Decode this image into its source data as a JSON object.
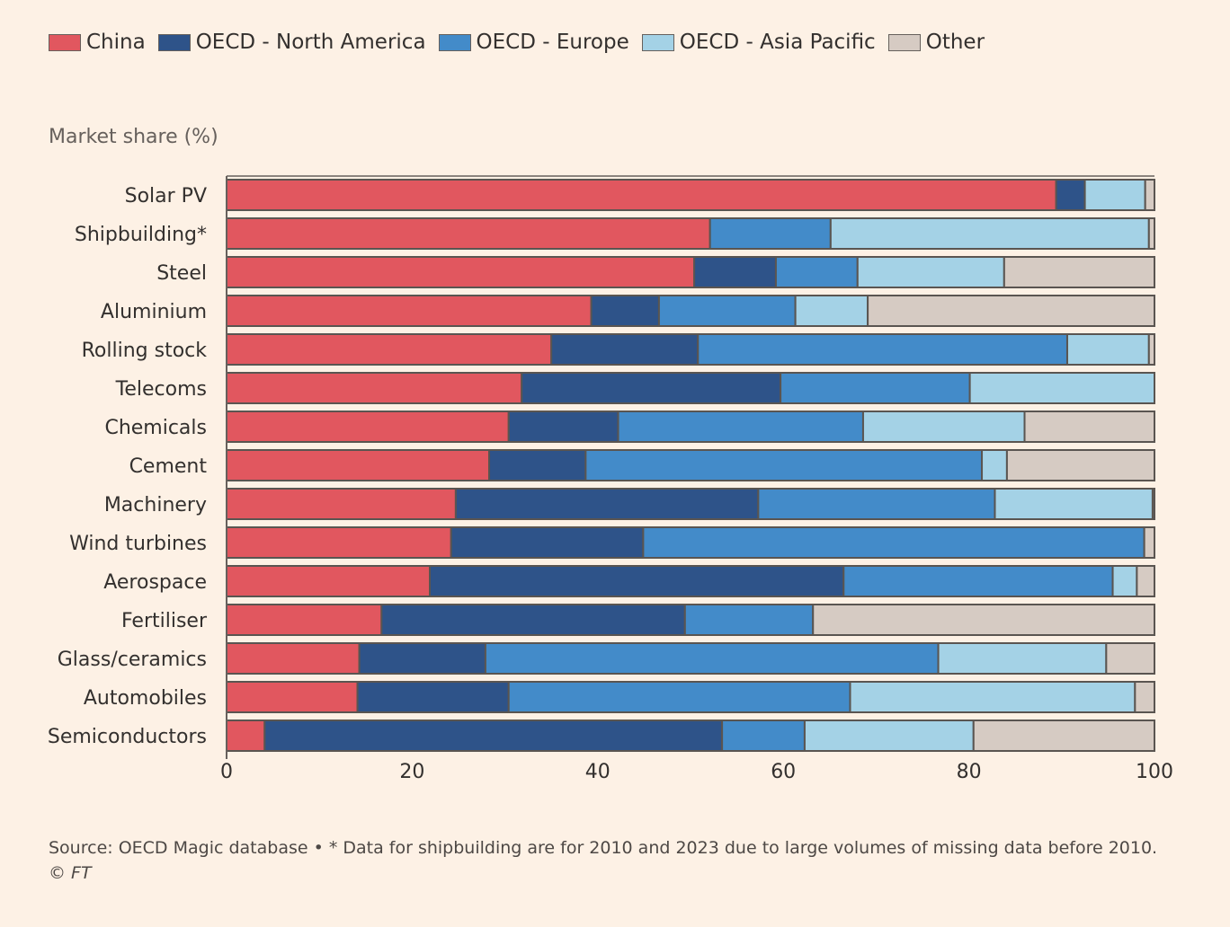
{
  "chart_data": {
    "type": "bar",
    "orientation": "horizontal",
    "stacked": true,
    "ylabel": "Market share (%)",
    "xlim": [
      0,
      100
    ],
    "xticks": [
      "0",
      "20",
      "40",
      "60",
      "80",
      "100"
    ],
    "legend_position": "top",
    "grid": false,
    "categories": [
      "Solar PV",
      "Shipbuilding*",
      "Steel",
      "Aluminium",
      "Rolling stock",
      "Telecoms",
      "Chemicals",
      "Cement",
      "Machinery",
      "Wind turbines",
      "Aerospace",
      "Fertiliser",
      "Glass/ceramics",
      "Automobiles",
      "Semiconductors"
    ],
    "series": [
      {
        "name": "China",
        "color": "#e1575f",
        "values": [
          89.4,
          52.1,
          50.4,
          39.3,
          35.0,
          31.8,
          30.4,
          28.3,
          24.7,
          24.2,
          21.9,
          16.7,
          14.3,
          14.1,
          4.1
        ]
      },
      {
        "name": "OECD - North America",
        "color": "#2e5389",
        "values": [
          3.1,
          0,
          8.8,
          7.3,
          15.8,
          27.9,
          11.8,
          10.4,
          32.6,
          20.7,
          44.6,
          32.7,
          13.6,
          16.3,
          49.3
        ]
      },
      {
        "name": "OECD - Europe",
        "color": "#438bc9",
        "values": [
          0,
          13.0,
          8.8,
          14.7,
          39.8,
          20.4,
          26.4,
          42.7,
          25.5,
          54.0,
          29.0,
          13.8,
          48.8,
          36.8,
          8.9
        ]
      },
      {
        "name": "OECD - Asia Pacific",
        "color": "#a4d2e6",
        "values": [
          6.5,
          34.3,
          15.8,
          7.8,
          8.8,
          19.9,
          17.4,
          2.7,
          17.0,
          0,
          2.6,
          0,
          18.1,
          30.7,
          18.2
        ]
      },
      {
        "name": "Other",
        "color": "#d6cbc3",
        "values": [
          1.0,
          0.6,
          16.2,
          30.9,
          0.6,
          0,
          14.0,
          15.9,
          0.2,
          1.1,
          1.9,
          36.8,
          5.2,
          2.1,
          19.5
        ]
      }
    ]
  },
  "footer": {
    "source": "Source: OECD Magic database • * Data for shipbuilding are for 2010 and 2023 due to large volumes of missing data before 2010.",
    "credit": "© FT"
  }
}
